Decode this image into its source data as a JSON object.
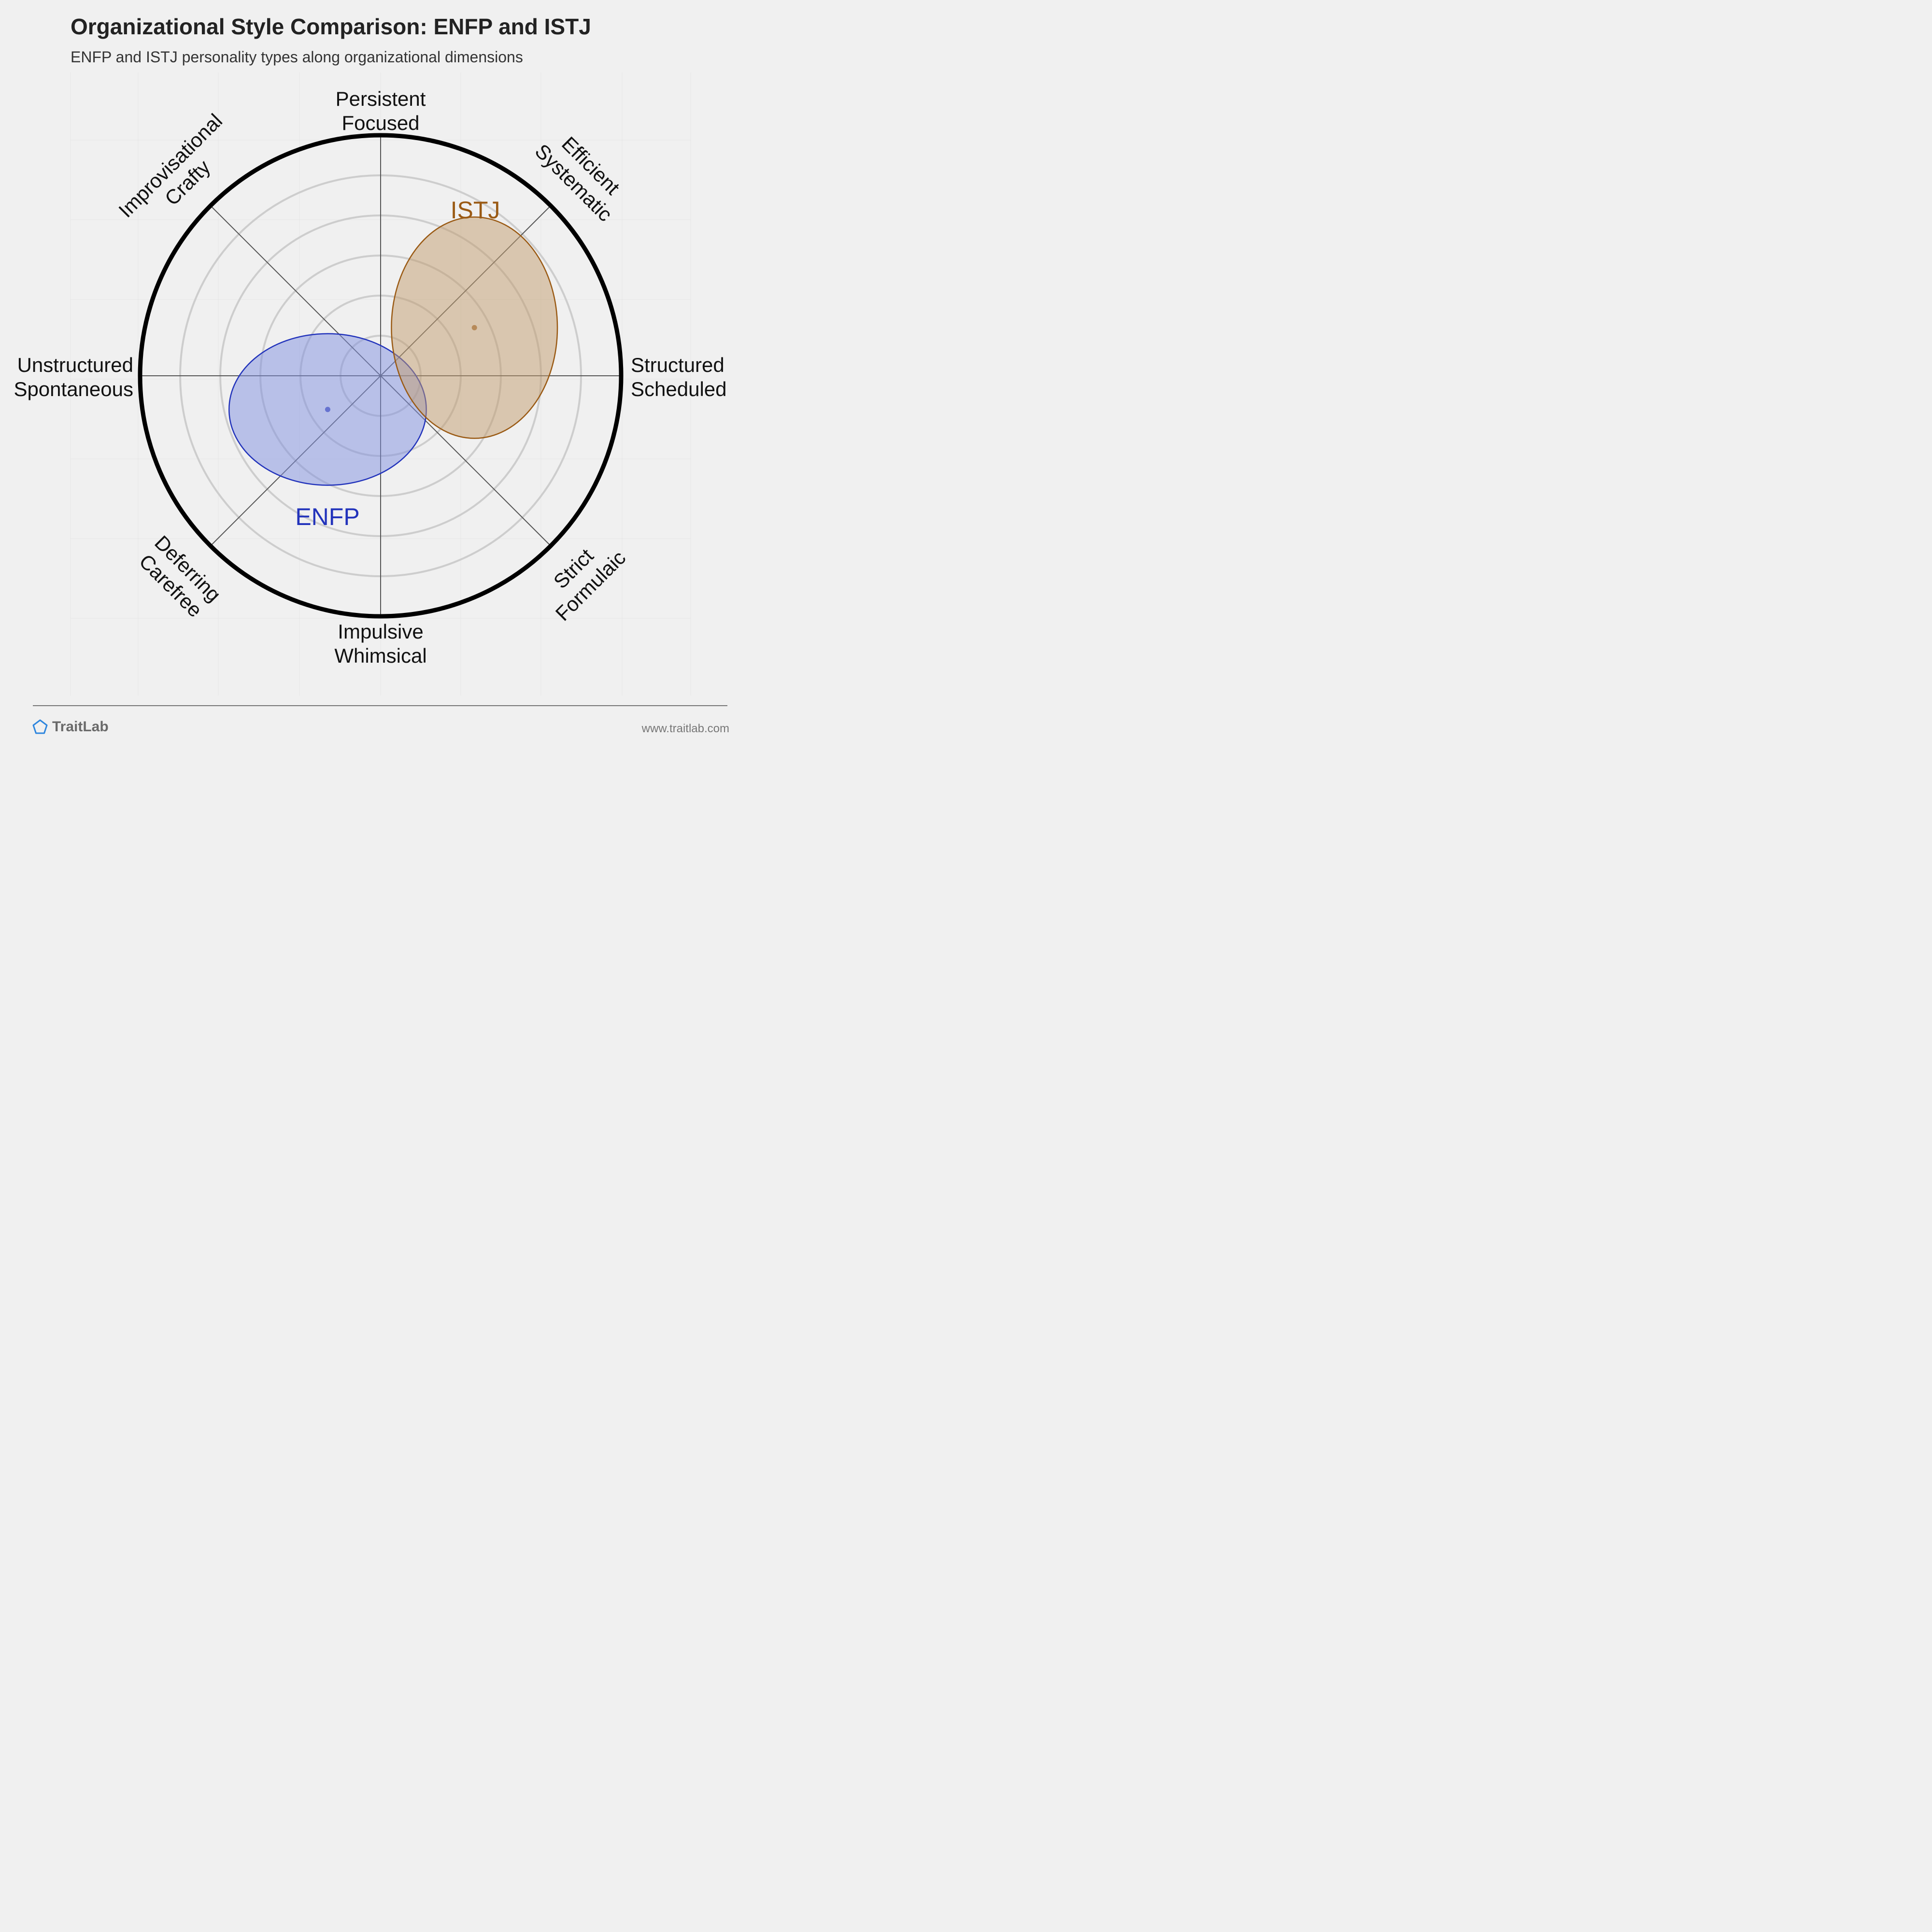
{
  "title": "Organizational Style Comparison: ENFP and ISTJ",
  "subtitle": "ENFP and ISTJ personality types along organizational dimensions",
  "chart_data": {
    "type": "scatter",
    "subtype": "polar-ellipse",
    "grid": true,
    "rings": 5,
    "radial_range": [
      0,
      100
    ],
    "axes": [
      {
        "angle": 0,
        "lines": [
          "Structured",
          "Scheduled"
        ]
      },
      {
        "angle": 45,
        "lines": [
          "Efficient",
          "Systematic"
        ]
      },
      {
        "angle": 90,
        "lines": [
          "Persistent",
          "Focused"
        ]
      },
      {
        "angle": 135,
        "lines": [
          "Improvisational",
          "Crafty"
        ]
      },
      {
        "angle": 180,
        "lines": [
          "Unstructured",
          "Spontaneous"
        ]
      },
      {
        "angle": 225,
        "lines": [
          "Deferring",
          "Carefree"
        ]
      },
      {
        "angle": 270,
        "lines": [
          "Impulsive",
          "Whimsical"
        ]
      },
      {
        "angle": 315,
        "lines": [
          "Strict",
          "Formulaic"
        ]
      }
    ],
    "series": [
      {
        "name": "ENFP",
        "center": [
          -22,
          -14
        ],
        "spread": [
          41,
          31.5
        ],
        "color": "#2233bb",
        "fill": "#7f8fe0"
      },
      {
        "name": "ISTJ",
        "center": [
          39,
          20
        ],
        "spread": [
          34.5,
          46
        ],
        "color": "#9a5a14",
        "fill": "#c19b6d"
      }
    ]
  },
  "footer": {
    "brand": "TraitLab",
    "url": "www.traitlab.com",
    "brand_icon": "pentagon-icon",
    "brand_color": "#2e86de"
  }
}
